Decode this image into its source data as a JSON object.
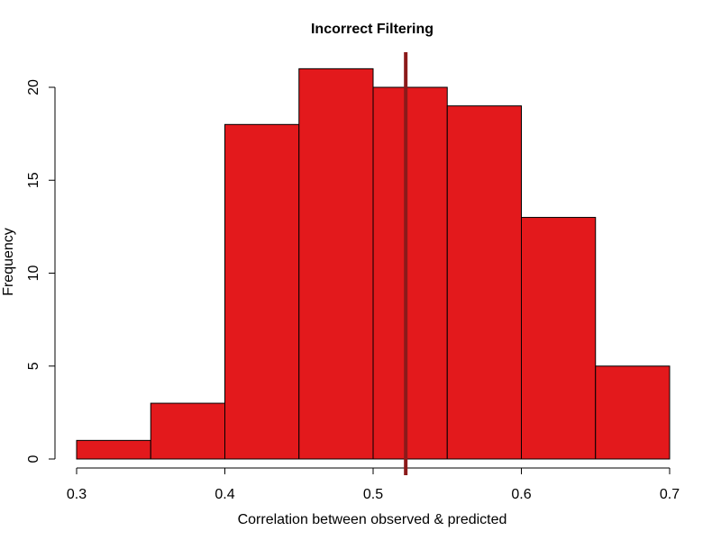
{
  "chart_data": {
    "type": "bar",
    "title": "Incorrect Filtering",
    "xlabel": "Correlation between observed & predicted",
    "ylabel": "Frequency",
    "bin_edges": [
      0.3,
      0.35,
      0.4,
      0.45,
      0.5,
      0.55,
      0.6,
      0.65,
      0.7
    ],
    "values": [
      1,
      3,
      18,
      21,
      20,
      19,
      13,
      5
    ],
    "xlim": [
      0.3,
      0.7
    ],
    "ylim": [
      0,
      22
    ],
    "x_ticks": [
      0.3,
      0.4,
      0.5,
      0.6,
      0.7
    ],
    "x_tick_labels": [
      "0.3",
      "0.4",
      "0.5",
      "0.6",
      "0.7"
    ],
    "y_ticks": [
      0,
      5,
      10,
      15,
      20
    ],
    "y_tick_labels": [
      "0",
      "5",
      "10",
      "15",
      "20"
    ],
    "reference_line_x": 0.522,
    "grid": false,
    "colors": {
      "bar_fill": "#e3191c",
      "bar_stroke": "#000000",
      "reference_line": "#8b1a1a"
    }
  }
}
